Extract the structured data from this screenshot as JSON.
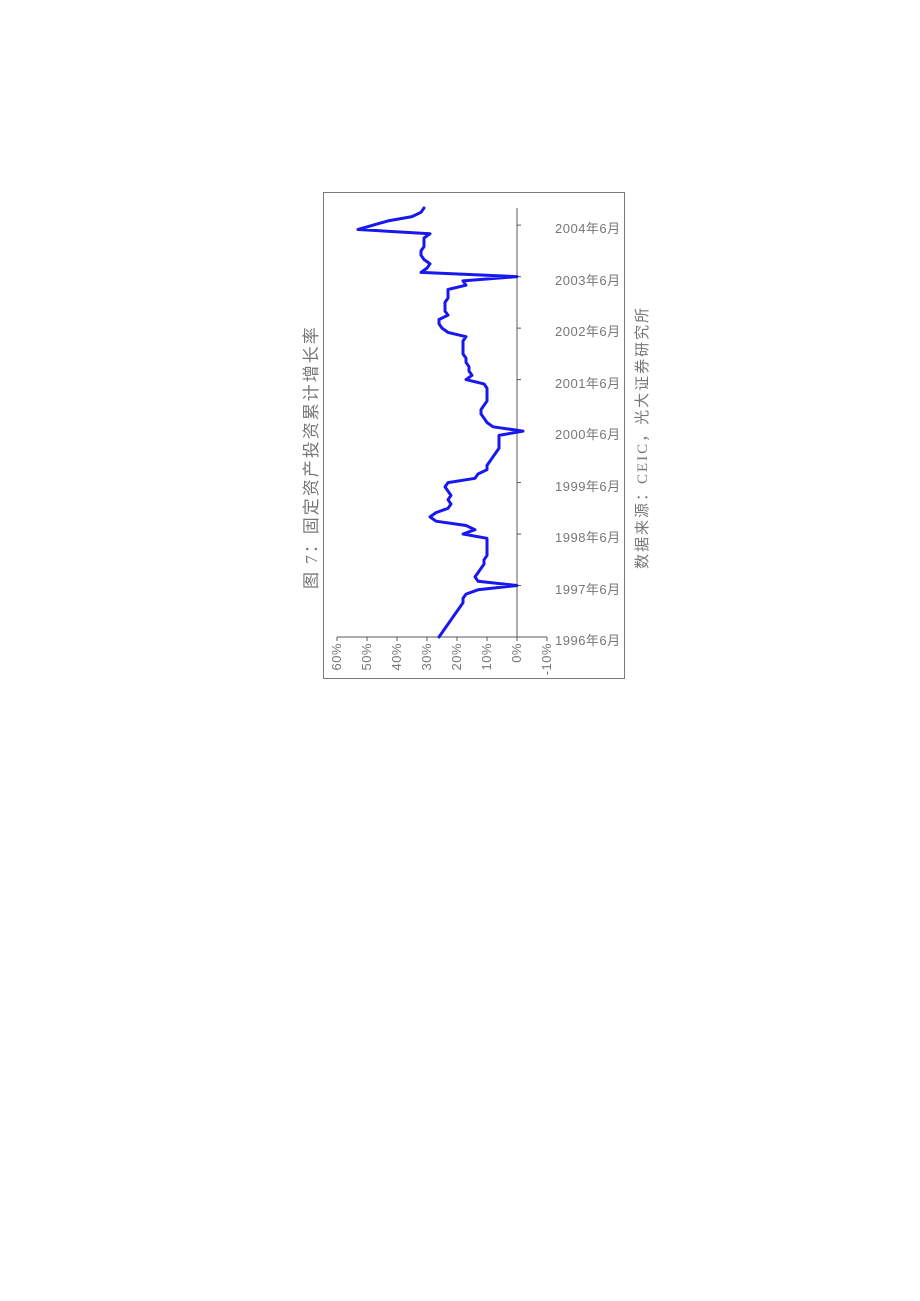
{
  "figure": {
    "title": "图 7：固定资产投资累计增长率",
    "source": "数据来源：CEIC，光大证券研究所",
    "outer_border_color": "#7a7a7a",
    "outer_border_width": 1,
    "background_color": "#ffffff",
    "rotation_deg": -90,
    "chart": {
      "type": "line",
      "line_color": "#1818ee",
      "line_width": 3,
      "axis_color": "#5a5a5a",
      "axis_width": 1,
      "label_color": "#777777",
      "label_fontsize": 13,
      "y_axis": {
        "min": -10,
        "max": 60,
        "ticks": [
          -10,
          0,
          10,
          20,
          30,
          40,
          50,
          60
        ],
        "tick_labels": [
          "-10%",
          "0%",
          "10%",
          "20%",
          "30%",
          "40%",
          "50%",
          "60%"
        ]
      },
      "x_axis": {
        "tick_indices": [
          0,
          12,
          24,
          36,
          48,
          60,
          72,
          84,
          96
        ],
        "tick_labels": [
          "1996年6月",
          "1997年6月",
          "1998年6月",
          "1999年6月",
          "2000年6月",
          "2001年6月",
          "2002年6月",
          "2003年6月",
          "2004年6月"
        ]
      },
      "series": {
        "name": "累计增长率",
        "values": [
          26,
          25,
          24,
          23,
          22,
          21,
          20,
          19,
          18,
          18,
          17,
          13,
          0,
          13,
          14,
          13,
          12,
          11,
          11,
          10,
          10,
          10,
          10,
          10,
          18,
          14,
          17,
          27,
          29,
          27,
          23,
          22,
          23,
          22,
          23,
          24,
          23,
          14,
          13,
          10,
          10,
          9,
          8,
          7,
          6,
          6,
          6,
          6,
          -2,
          8,
          10,
          11,
          12,
          12,
          11,
          10,
          10,
          10,
          10,
          11,
          17,
          15,
          16,
          16,
          17,
          17,
          18,
          18,
          18,
          18,
          17,
          23,
          25,
          26,
          26,
          23,
          24,
          24,
          24,
          23,
          23,
          23,
          17,
          18,
          0,
          32,
          30,
          29,
          31,
          32,
          32,
          31,
          31,
          31,
          29,
          53,
          48,
          43,
          35,
          32,
          31
        ]
      }
    }
  }
}
